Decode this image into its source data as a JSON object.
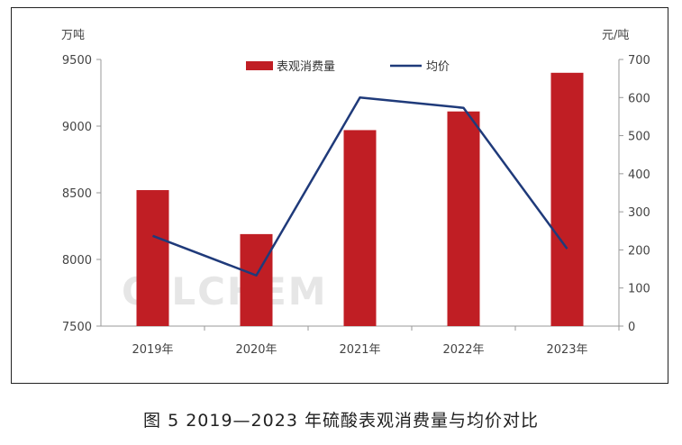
{
  "caption": "图 5  2019—2023 年硫酸表观消费量与均价对比",
  "watermark": "OILCHEM",
  "chart_data": {
    "type": "bar",
    "categories": [
      "2019年",
      "2020年",
      "2021年",
      "2022年",
      "2023年"
    ],
    "series": [
      {
        "name": "表观消费量",
        "type": "bar",
        "axis": "left",
        "color": "#c01e24",
        "values": [
          8520,
          8190,
          8970,
          9110,
          9400
        ]
      },
      {
        "name": "均价",
        "type": "line",
        "axis": "right",
        "color": "#1f3a7a",
        "values": [
          237,
          133,
          600,
          573,
          203
        ]
      }
    ],
    "left_axis": {
      "label": "万吨",
      "min": 7500,
      "max": 9500,
      "step": 500,
      "ticks": [
        "9500",
        "9000",
        "8500",
        "8000",
        "7500"
      ]
    },
    "right_axis": {
      "label": "元/吨",
      "min": 0,
      "max": 700,
      "step": 100,
      "ticks": [
        "700",
        "600",
        "500",
        "400",
        "300",
        "200",
        "100",
        "0"
      ]
    },
    "legend_position": "top-center",
    "grid": false
  }
}
